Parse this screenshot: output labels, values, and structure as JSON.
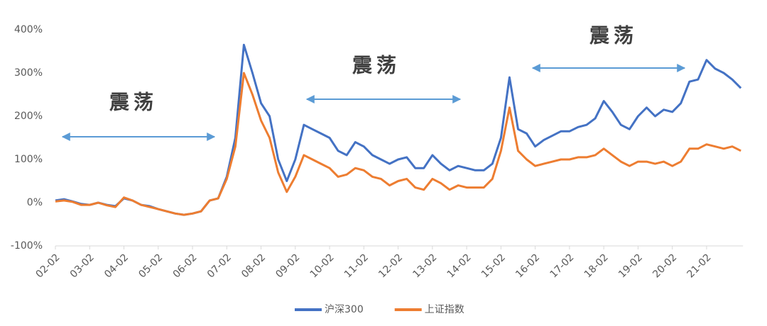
{
  "chart_data": {
    "type": "line",
    "categories": [
      "02-02",
      null,
      null,
      null,
      "03-02",
      null,
      null,
      null,
      "04-02",
      null,
      null,
      null,
      "05-02",
      null,
      null,
      null,
      "06-02",
      null,
      null,
      null,
      "07-02",
      null,
      null,
      null,
      "08-02",
      null,
      null,
      null,
      "09-02",
      null,
      null,
      null,
      "10-02",
      null,
      null,
      null,
      "11-02",
      null,
      null,
      null,
      "12-02",
      null,
      null,
      null,
      "13-02",
      null,
      null,
      null,
      "14-02",
      null,
      null,
      null,
      "15-02",
      null,
      null,
      null,
      "16-02",
      null,
      null,
      null,
      "17-02",
      null,
      null,
      null,
      "18-02",
      null,
      null,
      null,
      "19-02",
      null,
      null,
      null,
      "20-02",
      null,
      null,
      null,
      "21-02",
      null,
      null,
      null,
      null
    ],
    "series": [
      {
        "name": "沪深300",
        "color": "#4472c4",
        "values": [
          5,
          8,
          3,
          -3,
          -5,
          0,
          -5,
          -8,
          10,
          5,
          -5,
          -8,
          -15,
          -20,
          -25,
          -28,
          -25,
          -20,
          5,
          10,
          60,
          150,
          365,
          300,
          230,
          200,
          100,
          50,
          100,
          180,
          170,
          160,
          150,
          120,
          110,
          140,
          130,
          110,
          100,
          90,
          100,
          105,
          80,
          80,
          110,
          90,
          75,
          85,
          80,
          75,
          75,
          90,
          150,
          290,
          170,
          160,
          130,
          145,
          155,
          165,
          165,
          175,
          180,
          195,
          235,
          210,
          180,
          170,
          200,
          220,
          200,
          215,
          210,
          230,
          280,
          285,
          330,
          310,
          300,
          285,
          265
        ]
      },
      {
        "name": "上证指数",
        "color": "#ed7d31",
        "values": [
          3,
          5,
          2,
          -5,
          -5,
          0,
          -6,
          -10,
          12,
          5,
          -5,
          -10,
          -15,
          -20,
          -25,
          -28,
          -25,
          -20,
          5,
          10,
          55,
          130,
          300,
          250,
          190,
          150,
          70,
          25,
          60,
          110,
          100,
          90,
          80,
          60,
          65,
          80,
          75,
          60,
          55,
          40,
          50,
          55,
          35,
          30,
          55,
          45,
          30,
          40,
          35,
          35,
          35,
          55,
          120,
          220,
          120,
          100,
          85,
          90,
          95,
          100,
          100,
          105,
          105,
          110,
          125,
          110,
          95,
          85,
          95,
          95,
          90,
          95,
          85,
          95,
          125,
          125,
          135,
          130,
          125,
          130,
          120
        ]
      }
    ],
    "ylim": [
      -100,
      400
    ],
    "yticks": [
      {
        "value": -100,
        "label": "-100%"
      },
      {
        "value": 0,
        "label": "0%"
      },
      {
        "value": 100,
        "label": "100%"
      },
      {
        "value": 200,
        "label": "200%"
      },
      {
        "value": 300,
        "label": "300%"
      },
      {
        "value": 400,
        "label": "400%"
      }
    ],
    "annotations": [
      "震荡",
      "震荡",
      "震荡"
    ],
    "legend": "bottom"
  }
}
